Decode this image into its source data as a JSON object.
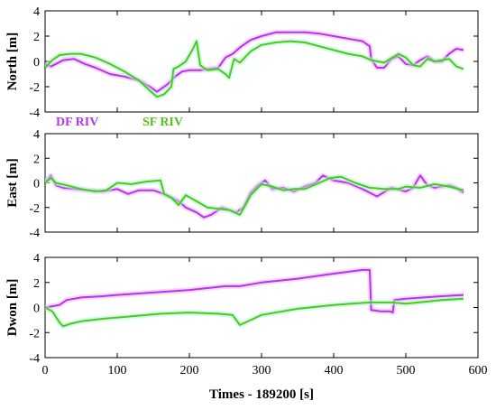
{
  "colors": {
    "df": "#b436e8",
    "sf": "#52c61c",
    "df_glow": "#f2b6ff",
    "sf_glow": "#aef7d8",
    "axis": "#000000"
  },
  "chart_data": [
    {
      "type": "line",
      "ylabel": "North [m]",
      "ylim": [
        -4,
        4
      ],
      "yticks": [
        "4",
        "2",
        "0",
        "-2",
        "-4"
      ],
      "xlim": [
        0,
        600
      ],
      "legend": [
        "DF RIV",
        "SF RIV"
      ],
      "legend_position": "bottom-left",
      "series": [
        {
          "name": "DF RIV",
          "x": [
            0,
            8,
            15,
            25,
            40,
            55,
            70,
            90,
            110,
            130,
            145,
            155,
            160,
            170,
            180,
            190,
            200,
            215,
            225,
            240,
            250,
            260,
            270,
            285,
            300,
            320,
            340,
            360,
            380,
            400,
            420,
            440,
            445,
            450,
            452,
            460,
            470,
            480,
            490,
            500,
            510,
            520,
            530,
            540,
            550,
            560,
            570,
            580
          ],
          "y": [
            -0.2,
            -0.4,
            -0.2,
            0.1,
            0.2,
            -0.2,
            -0.5,
            -1.0,
            -1.2,
            -1.5,
            -2.0,
            -2.4,
            -2.2,
            -1.8,
            -1.2,
            -0.8,
            -0.7,
            -0.7,
            -0.6,
            -0.5,
            0.3,
            0.6,
            1.1,
            1.7,
            2.0,
            2.3,
            2.3,
            2.3,
            2.2,
            2.0,
            1.8,
            1.6,
            1.4,
            1.2,
            0.2,
            -0.5,
            -0.5,
            0.2,
            0.4,
            -0.2,
            -0.3,
            0.1,
            0.4,
            0.0,
            0.0,
            0.6,
            1.0,
            0.9
          ]
        },
        {
          "name": "SF RIV",
          "x": [
            0,
            10,
            20,
            35,
            50,
            70,
            90,
            110,
            130,
            145,
            155,
            165,
            175,
            178,
            185,
            195,
            205,
            210,
            215,
            225,
            240,
            250,
            255,
            262,
            270,
            285,
            300,
            320,
            340,
            360,
            380,
            400,
            420,
            440,
            452,
            470,
            490,
            500,
            510,
            520,
            530,
            540,
            550,
            560,
            570,
            580
          ],
          "y": [
            -0.5,
            0.1,
            0.5,
            0.6,
            0.6,
            0.3,
            -0.2,
            -0.8,
            -1.5,
            -2.3,
            -2.8,
            -2.6,
            -2.0,
            -0.6,
            -0.4,
            0.0,
            1.0,
            1.6,
            -0.3,
            -0.7,
            -0.6,
            -1.0,
            -1.3,
            0.2,
            -0.1,
            0.8,
            1.3,
            1.5,
            1.6,
            1.5,
            1.2,
            0.9,
            0.6,
            0.4,
            0.1,
            -0.1,
            0.6,
            0.3,
            -0.3,
            -0.4,
            0.2,
            0.0,
            0.1,
            0.2,
            -0.4,
            -0.6
          ]
        }
      ]
    },
    {
      "type": "line",
      "ylabel": "East [m]",
      "ylim": [
        -4,
        4
      ],
      "yticks": [
        "4",
        "2",
        "0",
        "-2",
        "-4"
      ],
      "xlim": [
        0,
        600
      ],
      "series": [
        {
          "name": "DF RIV",
          "x": [
            0,
            8,
            15,
            25,
            40,
            60,
            80,
            100,
            115,
            130,
            150,
            160,
            175,
            185,
            195,
            210,
            220,
            230,
            245,
            255,
            265,
            275,
            285,
            295,
            305,
            315,
            330,
            345,
            360,
            375,
            385,
            400,
            420,
            440,
            450,
            460,
            480,
            500,
            510,
            520,
            530,
            540,
            560,
            570,
            580
          ],
          "y": [
            0.0,
            0.6,
            -0.2,
            -0.4,
            -0.5,
            -0.6,
            -0.7,
            -0.5,
            -0.9,
            -0.6,
            -0.6,
            -0.8,
            -1.2,
            -1.5,
            -2.0,
            -2.4,
            -2.8,
            -2.6,
            -2.0,
            -2.2,
            -2.4,
            -2.0,
            -0.8,
            -0.2,
            0.2,
            -0.5,
            -0.4,
            -0.7,
            -0.3,
            0.0,
            0.6,
            0.2,
            0.0,
            -0.5,
            -0.8,
            -1.1,
            -0.4,
            -0.7,
            -0.4,
            0.6,
            -0.2,
            -0.4,
            -0.2,
            -0.4,
            -0.8
          ]
        },
        {
          "name": "SF RIV",
          "x": [
            0,
            8,
            15,
            30,
            50,
            70,
            85,
            100,
            120,
            140,
            160,
            165,
            175,
            185,
            195,
            210,
            225,
            240,
            255,
            270,
            285,
            300,
            315,
            330,
            345,
            360,
            380,
            395,
            410,
            430,
            450,
            470,
            490,
            500,
            520,
            540,
            560,
            580
          ],
          "y": [
            0.0,
            0.4,
            0.0,
            -0.2,
            -0.5,
            -0.7,
            -0.6,
            0.0,
            -0.1,
            0.1,
            0.2,
            -0.9,
            -1.2,
            -1.8,
            -1.0,
            -1.5,
            -2.0,
            -2.1,
            -2.2,
            -2.6,
            -1.0,
            -0.1,
            -0.3,
            -0.6,
            -0.5,
            -0.5,
            0.0,
            0.4,
            0.5,
            0.0,
            -0.4,
            -0.5,
            -0.5,
            -0.3,
            -0.4,
            -0.1,
            -0.3,
            -0.6
          ]
        }
      ]
    },
    {
      "type": "line",
      "ylabel": "Dwon [m]",
      "xlabel": "Times - 189200 [s]",
      "ylim": [
        -4,
        4
      ],
      "yticks": [
        "4",
        "2",
        "0",
        "-2",
        "-4"
      ],
      "xlim": [
        0,
        600
      ],
      "xticks": [
        "0",
        "100",
        "200",
        "300",
        "400",
        "500",
        "600"
      ],
      "series": [
        {
          "name": "DF RIV",
          "x": [
            0,
            10,
            20,
            30,
            50,
            80,
            100,
            150,
            200,
            250,
            270,
            300,
            350,
            400,
            440,
            448,
            450,
            452,
            465,
            478,
            482,
            484,
            500,
            550,
            580
          ],
          "y": [
            0.0,
            0.1,
            0.2,
            0.6,
            0.8,
            0.9,
            1.0,
            1.2,
            1.4,
            1.7,
            1.7,
            2.0,
            2.3,
            2.7,
            3.0,
            3.0,
            3.0,
            -0.2,
            -0.3,
            -0.3,
            -0.4,
            0.6,
            0.7,
            0.9,
            1.0
          ]
        },
        {
          "name": "SF RIV",
          "x": [
            0,
            10,
            20,
            25,
            35,
            50,
            80,
            120,
            160,
            200,
            240,
            260,
            265,
            270,
            285,
            300,
            350,
            400,
            450,
            480,
            500,
            550,
            580
          ],
          "y": [
            0.0,
            -0.3,
            -1.2,
            -1.5,
            -1.3,
            -1.1,
            -0.9,
            -0.7,
            -0.5,
            -0.4,
            -0.5,
            -0.6,
            -1.0,
            -1.4,
            -1.0,
            -0.6,
            -0.1,
            0.2,
            0.4,
            0.4,
            0.3,
            0.6,
            0.7
          ]
        }
      ]
    }
  ]
}
